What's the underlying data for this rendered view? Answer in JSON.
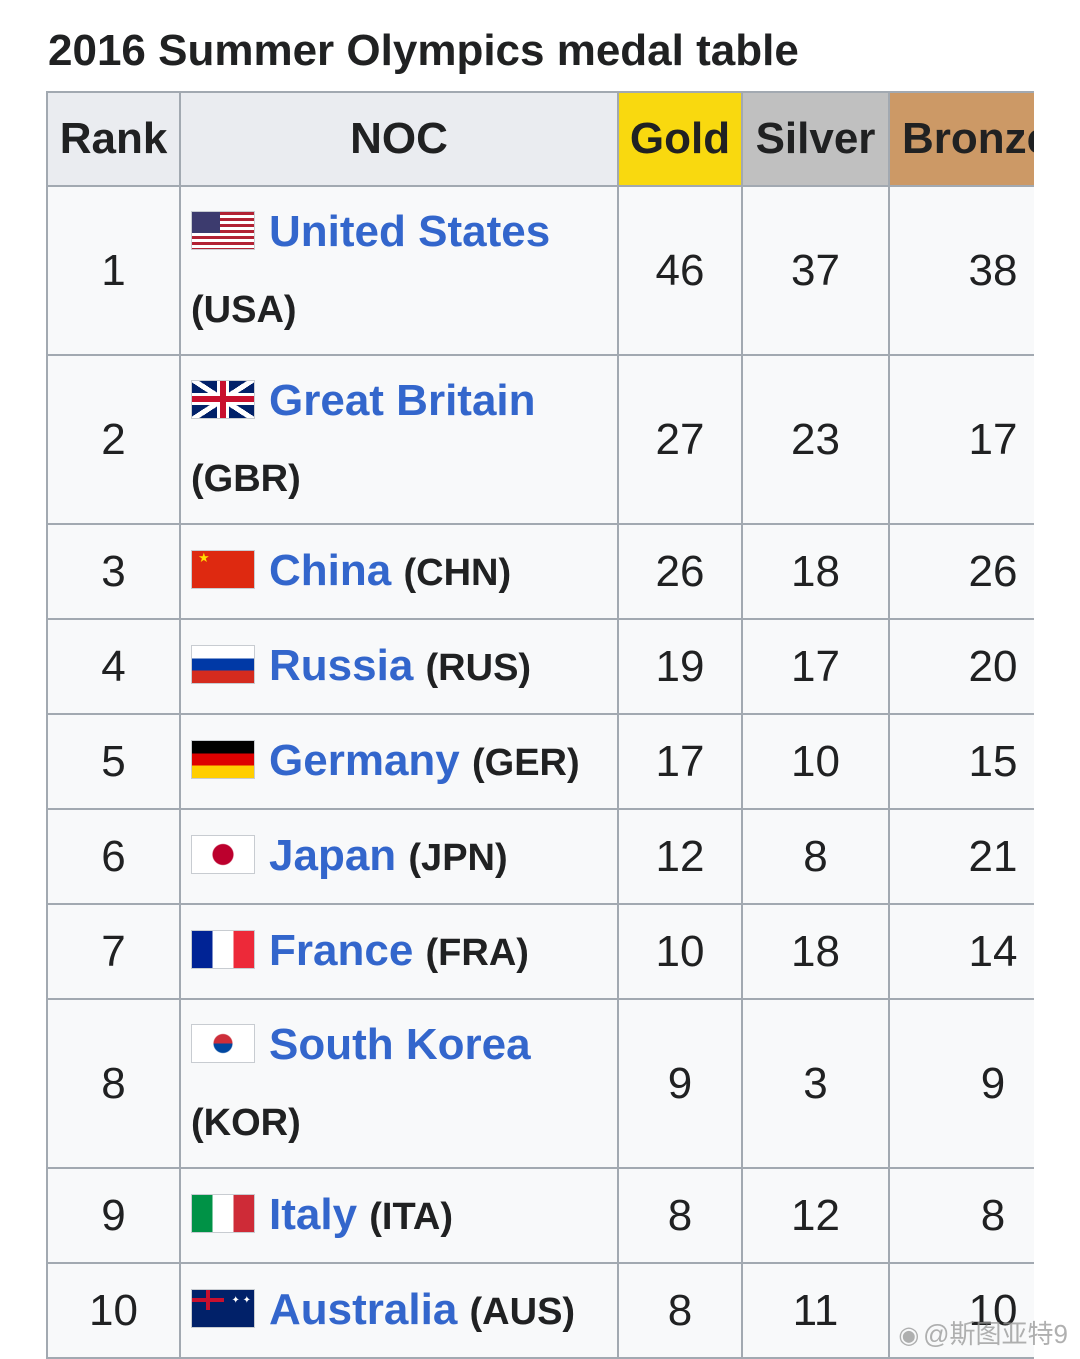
{
  "title": "2016 Summer Olympics medal table",
  "headers": {
    "rank": "Rank",
    "noc": "NOC",
    "gold": "Gold",
    "silver": "Silver",
    "bronze": "Bronze"
  },
  "colors": {
    "gold": "#f9d90f",
    "silver": "#c0c0c0",
    "bronze": "#cc9966",
    "link": "#3366cc"
  },
  "rows": [
    {
      "rank": "1",
      "country": "United States",
      "code": "(USA)",
      "flag": "usa-flag-icon",
      "gold": "46",
      "silver": "37",
      "bronze": "38"
    },
    {
      "rank": "2",
      "country": "Great Britain",
      "code": "(GBR)",
      "flag": "uk-flag-icon",
      "gold": "27",
      "silver": "23",
      "bronze": "17"
    },
    {
      "rank": "3",
      "country": "China",
      "code": "(CHN)",
      "flag": "china-flag-icon",
      "gold": "26",
      "silver": "18",
      "bronze": "26"
    },
    {
      "rank": "4",
      "country": "Russia",
      "code": "(RUS)",
      "flag": "russia-flag-icon",
      "gold": "19",
      "silver": "17",
      "bronze": "20"
    },
    {
      "rank": "5",
      "country": "Germany",
      "code": "(GER)",
      "flag": "germany-flag-icon",
      "gold": "17",
      "silver": "10",
      "bronze": "15"
    },
    {
      "rank": "6",
      "country": "Japan",
      "code": "(JPN)",
      "flag": "japan-flag-icon",
      "gold": "12",
      "silver": "8",
      "bronze": "21"
    },
    {
      "rank": "7",
      "country": "France",
      "code": "(FRA)",
      "flag": "france-flag-icon",
      "gold": "10",
      "silver": "18",
      "bronze": "14"
    },
    {
      "rank": "8",
      "country": "South Korea",
      "code": "(KOR)",
      "flag": "south-korea-flag-icon",
      "gold": "9",
      "silver": "3",
      "bronze": "9"
    },
    {
      "rank": "9",
      "country": "Italy",
      "code": "(ITA)",
      "flag": "italy-flag-icon",
      "gold": "8",
      "silver": "12",
      "bronze": "8"
    },
    {
      "rank": "10",
      "country": "Australia",
      "code": "(AUS)",
      "flag": "australia-flag-icon",
      "gold": "8",
      "silver": "11",
      "bronze": "10"
    }
  ],
  "watermark": {
    "icon": "weibo-icon",
    "text": "@斯图亚特9"
  }
}
